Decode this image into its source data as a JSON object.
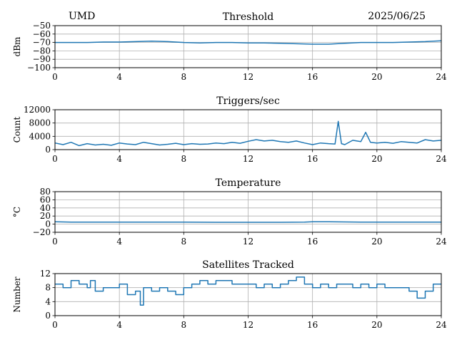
{
  "header": {
    "station": "UMD",
    "date": "2025/06/25"
  },
  "colors": {
    "line": "#1f77b4",
    "grid": "#b0b0b0",
    "axis": "#000000"
  },
  "chart_data": [
    {
      "type": "line",
      "title": "Threshold",
      "xlabel": "",
      "ylabel": "dBm",
      "xlim": [
        0,
        24
      ],
      "ylim": [
        -100,
        -50
      ],
      "xticks": [
        0,
        4,
        8,
        12,
        16,
        20,
        24
      ],
      "yticks": [
        -100,
        -90,
        -80,
        -70,
        -60,
        -50
      ],
      "ytick_labels": [
        "−100",
        "−90",
        "−80",
        "−70",
        "−60",
        "−50"
      ],
      "grid": true,
      "series": [
        {
          "x": [
            0,
            1,
            2,
            3,
            4,
            5,
            6,
            7,
            8,
            9,
            10,
            11,
            12,
            13,
            14,
            15,
            16,
            17,
            18,
            19,
            20,
            21,
            22,
            23,
            24
          ],
          "values": [
            -70,
            -70,
            -70,
            -69.5,
            -69.5,
            -69,
            -68.5,
            -69,
            -70,
            -70.5,
            -70,
            -70,
            -70.5,
            -70.5,
            -71,
            -71.5,
            -72,
            -72,
            -71,
            -70,
            -70,
            -70,
            -69.5,
            -69,
            -68
          ]
        }
      ]
    },
    {
      "type": "line",
      "title": "Triggers/sec",
      "xlabel": "",
      "ylabel": "Count",
      "xlim": [
        0,
        24
      ],
      "ylim": [
        0,
        12000
      ],
      "xticks": [
        0,
        4,
        8,
        12,
        16,
        20,
        24
      ],
      "yticks": [
        0,
        4000,
        8000,
        12000
      ],
      "ytick_labels": [
        "0",
        "4000",
        "8000",
        "12000"
      ],
      "grid": true,
      "series": [
        {
          "x": [
            0,
            0.5,
            1,
            1.5,
            2,
            2.5,
            3,
            3.5,
            4,
            4.5,
            5,
            5.5,
            6,
            6.5,
            7,
            7.5,
            8,
            8.5,
            9,
            9.5,
            10,
            10.5,
            11,
            11.5,
            12,
            12.5,
            13,
            13.5,
            14,
            14.5,
            15,
            15.5,
            16,
            16.5,
            17,
            17.4,
            17.6,
            17.8,
            18,
            18.5,
            19,
            19.3,
            19.6,
            20,
            20.5,
            21,
            21.5,
            22,
            22.5,
            23,
            23.5,
            24
          ],
          "values": [
            2000,
            1500,
            2200,
            1200,
            1800,
            1400,
            1600,
            1300,
            2000,
            1700,
            1500,
            2200,
            1800,
            1400,
            1600,
            1900,
            1500,
            1800,
            1600,
            1700,
            2000,
            1800,
            2200,
            1900,
            2500,
            3000,
            2600,
            2800,
            2400,
            2200,
            2600,
            2000,
            1500,
            2000,
            1800,
            1700,
            8500,
            1800,
            1500,
            2800,
            2400,
            5200,
            2200,
            2000,
            2200,
            1900,
            2400,
            2200,
            2000,
            3000,
            2600,
            2800
          ]
        }
      ]
    },
    {
      "type": "line",
      "title": "Temperature",
      "xlabel": "",
      "ylabel": "°C",
      "xlim": [
        0,
        24
      ],
      "ylim": [
        -20,
        80
      ],
      "xticks": [
        0,
        4,
        8,
        12,
        16,
        20,
        24
      ],
      "yticks": [
        -20,
        0,
        20,
        40,
        60,
        80
      ],
      "ytick_labels": [
        "−20",
        "0",
        "20",
        "40",
        "60",
        "80"
      ],
      "grid": true,
      "series": [
        {
          "x": [
            0,
            1,
            2,
            4,
            6,
            8,
            10,
            12,
            14,
            15.5,
            16,
            17,
            18,
            19,
            20,
            22,
            24
          ],
          "values": [
            6,
            5,
            5,
            5,
            5,
            5,
            4.5,
            4.5,
            4.5,
            5,
            6,
            6,
            5.5,
            5,
            5,
            5,
            5
          ]
        }
      ]
    },
    {
      "type": "line",
      "title": "Satellites Tracked",
      "xlabel": "",
      "ylabel": "Number",
      "xlim": [
        0,
        24
      ],
      "ylim": [
        0,
        12
      ],
      "xticks": [
        0,
        4,
        8,
        12,
        16,
        20,
        24
      ],
      "yticks": [
        0,
        4,
        8,
        12
      ],
      "ytick_labels": [
        "0",
        "4",
        "8",
        "12"
      ],
      "grid": true,
      "step": true,
      "series": [
        {
          "x": [
            0,
            0.5,
            1,
            1.5,
            2,
            2.2,
            2.5,
            3,
            3.5,
            4,
            4.5,
            5,
            5.3,
            5.5,
            6,
            6.5,
            7,
            7.5,
            8,
            8.5,
            9,
            9.5,
            10,
            11,
            12,
            12.5,
            13,
            13.5,
            14,
            14.5,
            15,
            15.5,
            16,
            16.5,
            17,
            17.5,
            18,
            18.5,
            19,
            19.5,
            20,
            20.5,
            21,
            21.5,
            22,
            22.5,
            23,
            23.5,
            24
          ],
          "values": [
            9,
            8,
            10,
            9,
            8,
            10,
            7,
            8,
            8,
            9,
            6,
            7,
            3,
            8,
            7,
            8,
            7,
            6,
            8,
            9,
            10,
            9,
            10,
            9,
            9,
            8,
            9,
            8,
            9,
            10,
            11,
            9,
            8,
            9,
            8,
            9,
            9,
            8,
            9,
            8,
            9,
            8,
            8,
            8,
            7,
            5,
            7,
            9,
            9
          ]
        }
      ]
    }
  ]
}
